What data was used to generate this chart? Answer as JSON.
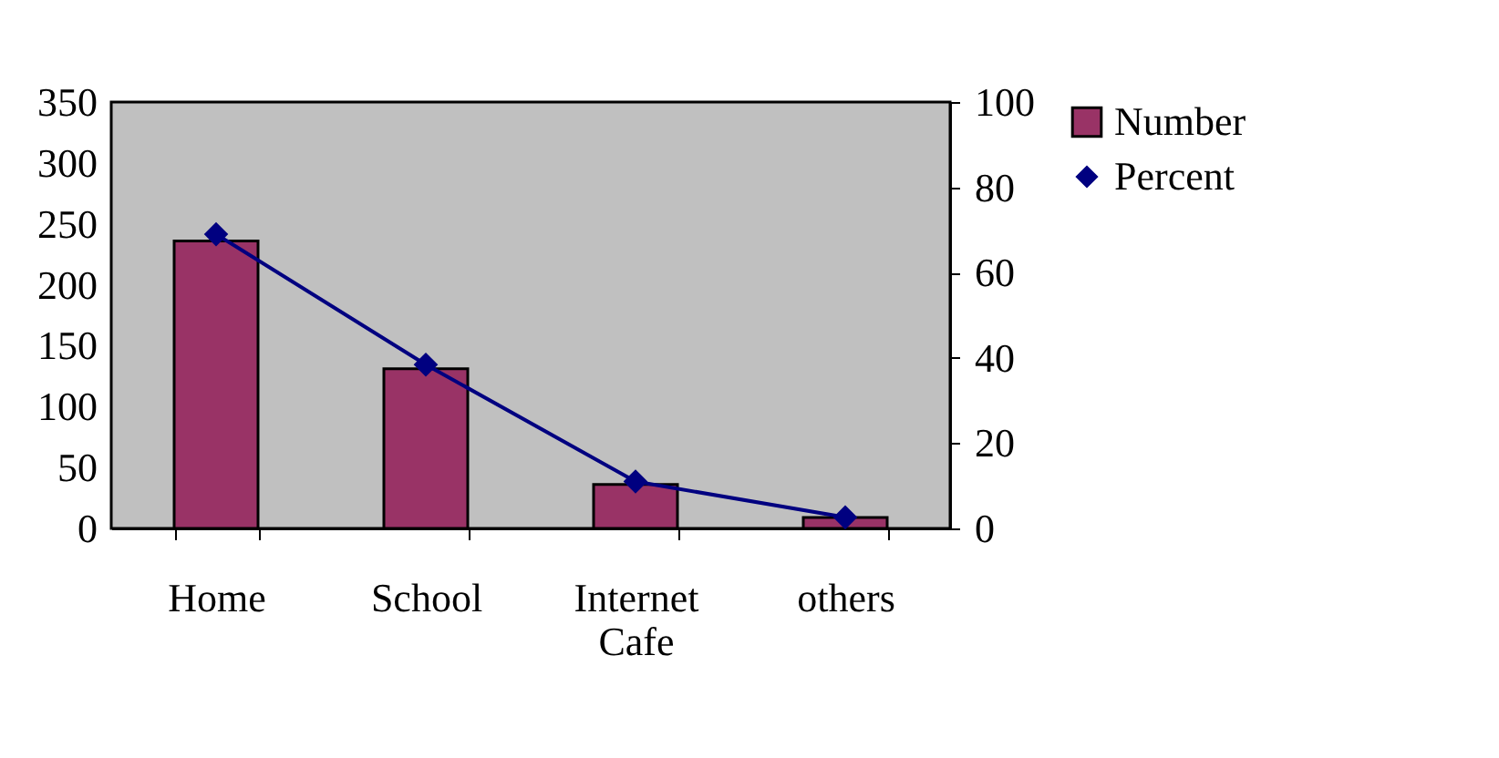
{
  "chart_data": {
    "type": "bar",
    "categories": [
      "Home",
      "School",
      "Internet Cafe",
      "others"
    ],
    "series": [
      {
        "name": "Number",
        "color": "#993366",
        "values": [
          236,
          131,
          36,
          9
        ]
      },
      {
        "name": "Percent",
        "type": "line",
        "axis": "y2",
        "color": "#000080",
        "marker": "diamond",
        "values": [
          69,
          38.4,
          11,
          2.6
        ]
      }
    ],
    "ylim": [
      0,
      350
    ],
    "yticks": [
      0,
      50,
      100,
      150,
      200,
      250,
      300,
      350
    ],
    "y2lim": [
      0,
      100
    ],
    "y2ticks": [
      0,
      20,
      40,
      60,
      80,
      100
    ],
    "grid": false,
    "legend": "right"
  }
}
